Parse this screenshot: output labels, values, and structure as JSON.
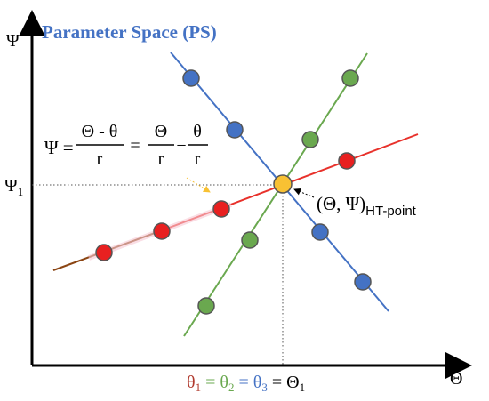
{
  "title": "Parameter Space (PS)",
  "axes": {
    "y_label": "Ψ",
    "x_label": "Θ",
    "y_tick": {
      "sym": "Ψ",
      "sub": "1"
    },
    "x_tick": {
      "t1": "θ",
      "s1": "1",
      "eq1": " = ",
      "t2": "θ",
      "s2": "2",
      "eq2": " = ",
      "t3": "θ",
      "s3": "3",
      "eq3": " = ",
      "t4": "Θ",
      "s4": "1"
    }
  },
  "formula": {
    "lhs": "Ψ = ",
    "num1": "Θ - θ",
    "den1": "r",
    "eq": "=",
    "num2": "Θ",
    "den2": "r",
    "minus": "−",
    "num3": "θ",
    "den3": "r"
  },
  "ht_label": {
    "main": "(Θ, Ψ)",
    "sub": "HT-point"
  },
  "colors": {
    "title": "#4472C4",
    "axis": "#000000",
    "red_line": "#E8312B",
    "red_line_left": "#8B4513",
    "green_line": "#6AA84F",
    "blue_line": "#4472C4",
    "red_dot": "#E82020",
    "green_dot": "#6AA84F",
    "blue_dot": "#4472C4",
    "ht_point": "#F8C133",
    "theta1": "#B03A2E",
    "theta2": "#6AA84F",
    "theta3": "#4472C4",
    "arrow": "#F8C133"
  }
}
